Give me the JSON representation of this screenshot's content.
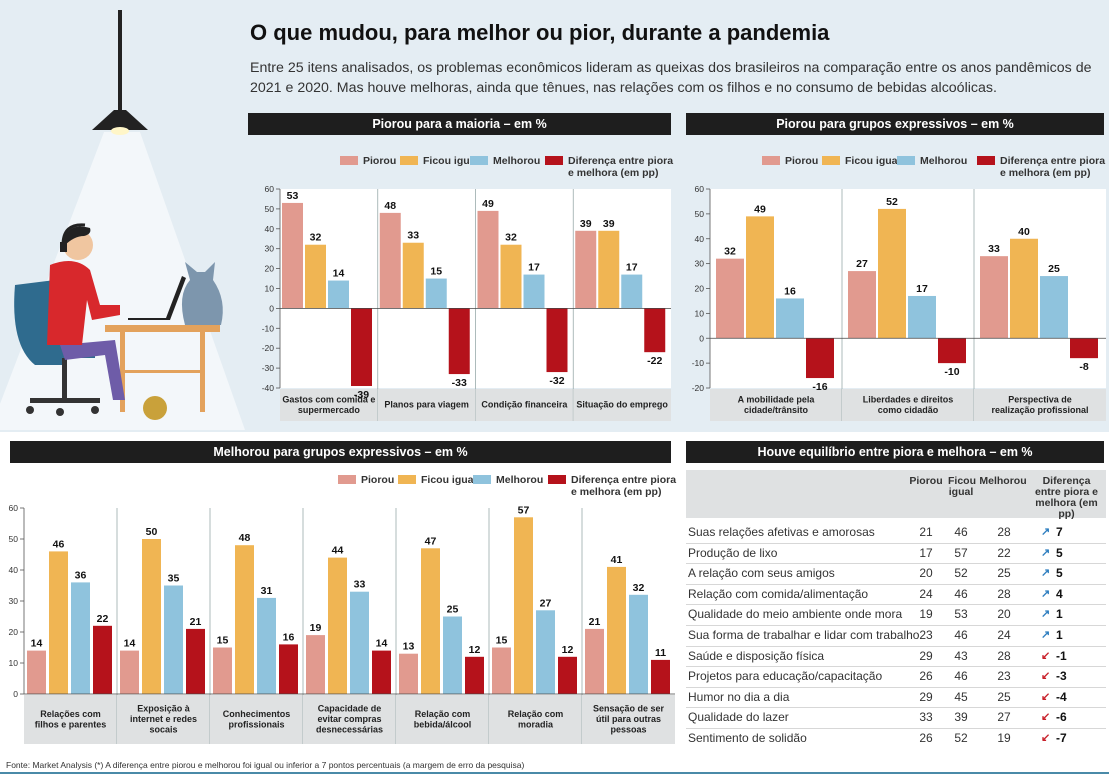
{
  "title": "O que mudou, para melhor ou pior, durante a pandemia",
  "subtitle": "Entre 25 itens analisados, os problemas econômicos lideram as queixas dos brasileiros na comparação entre os anos pandêmicos de 2021 e 2020. Mas houve melhoras, ainda que tênues, nas relações com os filhos e no consumo de bebidas alcoólicas.",
  "legend": {
    "piorou": "Piorou",
    "ficou_igual": "Ficou igual",
    "melhorou": "Melhorou",
    "diferenca": "Diferença entre piora e melhora (em pp)"
  },
  "colors": {
    "piorou": "#e19a8f",
    "ficou_igual": "#f0b553",
    "melhorou": "#8fc3dd",
    "diferenca": "#b5121b",
    "header_bg": "#1e1e1e",
    "band_bg": "#e4edf3",
    "arrow_up": "#2f7fc0",
    "arrow_down": "#c8202a"
  },
  "chart_data": [
    {
      "type": "bar",
      "title": "Piorou para a maioria – em %",
      "series_names": [
        "Piorou",
        "Ficou igual",
        "Melhorou",
        "Diferença entre piora e melhora (em pp)"
      ],
      "ylim": [
        -40,
        60
      ],
      "yticks": [
        60,
        50,
        40,
        30,
        20,
        10,
        0,
        -10,
        -20,
        -30,
        -40
      ],
      "categories": [
        {
          "label": "Gastos com comida e supermercado",
          "values": [
            53,
            32,
            14,
            -39
          ]
        },
        {
          "label": "Planos para viagem",
          "values": [
            48,
            33,
            15,
            -33
          ]
        },
        {
          "label": "Condição financeira",
          "values": [
            49,
            32,
            17,
            -32
          ]
        },
        {
          "label": "Situação do emprego",
          "values": [
            39,
            39,
            17,
            -22
          ]
        }
      ]
    },
    {
      "type": "bar",
      "title": "Piorou para grupos expressivos – em %",
      "series_names": [
        "Piorou",
        "Ficou igual",
        "Melhorou",
        "Diferença entre piora e melhora (em pp)"
      ],
      "ylim": [
        -20,
        60
      ],
      "yticks": [
        60,
        50,
        40,
        30,
        20,
        10,
        0,
        -10,
        -20
      ],
      "categories": [
        {
          "label": "A mobilidade pela cidade/trânsito",
          "values": [
            32,
            49,
            16,
            -16
          ]
        },
        {
          "label": "Liberdades e direitos como cidadão",
          "values": [
            27,
            52,
            17,
            -10
          ]
        },
        {
          "label": "Perspectiva de realização profissional",
          "values": [
            33,
            40,
            25,
            -8
          ]
        }
      ]
    },
    {
      "type": "bar",
      "title": "Melhorou para grupos expressivos – em %",
      "series_names": [
        "Piorou",
        "Ficou igual",
        "Melhorou",
        "Diferença entre piora e melhora (em pp)"
      ],
      "ylim": [
        0,
        60
      ],
      "yticks": [
        60,
        50,
        40,
        30,
        20,
        10,
        0
      ],
      "categories": [
        {
          "label": "Relações com filhos e parentes",
          "values": [
            14,
            46,
            36,
            22
          ]
        },
        {
          "label": "Exposição à internet e redes socais",
          "values": [
            14,
            50,
            35,
            21
          ]
        },
        {
          "label": "Conhecimentos profissionais",
          "values": [
            15,
            48,
            31,
            16
          ]
        },
        {
          "label": "Capacidade de evitar compras desnecessárias",
          "values": [
            19,
            44,
            33,
            14
          ]
        },
        {
          "label": "Relação com bebida/álcool",
          "values": [
            13,
            47,
            25,
            12
          ]
        },
        {
          "label": "Relação com moradia",
          "values": [
            15,
            57,
            27,
            12
          ]
        },
        {
          "label": "Sensação de ser útil para outras pessoas",
          "values": [
            21,
            41,
            32,
            11
          ]
        }
      ]
    },
    {
      "type": "table",
      "title": "Houve equilíbrio entre piora e melhora – em %",
      "columns": [
        "Piorou",
        "Ficou igual",
        "Melhorou",
        "Diferença entre piora e melhora (em pp)"
      ],
      "rows": [
        {
          "label": "Suas relações afetivas e amorosas",
          "piorou": 21,
          "ficou_igual": 46,
          "melhorou": 28,
          "diferenca": "7",
          "dir": "up"
        },
        {
          "label": "Produção de lixo",
          "piorou": 17,
          "ficou_igual": 57,
          "melhorou": 22,
          "diferenca": "5",
          "dir": "up"
        },
        {
          "label": "A relação com seus amigos",
          "piorou": 20,
          "ficou_igual": 52,
          "melhorou": 25,
          "diferenca": "5",
          "dir": "up"
        },
        {
          "label": "Relação com comida/alimentação",
          "piorou": 24,
          "ficou_igual": 46,
          "melhorou": 28,
          "diferenca": "4",
          "dir": "up"
        },
        {
          "label": "Qualidade do meio ambiente onde mora",
          "piorou": 19,
          "ficou_igual": 53,
          "melhorou": 20,
          "diferenca": "1",
          "dir": "up"
        },
        {
          "label": "Sua forma de trabalhar e lidar com trabalho",
          "piorou": 23,
          "ficou_igual": 46,
          "melhorou": 24,
          "diferenca": "1",
          "dir": "up"
        },
        {
          "label": "Saúde e disposição física",
          "piorou": 29,
          "ficou_igual": 43,
          "melhorou": 28,
          "diferenca": "-1",
          "dir": "down"
        },
        {
          "label": "Projetos para educação/capacitação",
          "piorou": 26,
          "ficou_igual": 46,
          "melhorou": 23,
          "diferenca": "-3",
          "dir": "down"
        },
        {
          "label": "Humor no dia a dia",
          "piorou": 29,
          "ficou_igual": 45,
          "melhorou": 25,
          "diferenca": "-4",
          "dir": "down"
        },
        {
          "label": "Qualidade do lazer",
          "piorou": 33,
          "ficou_igual": 39,
          "melhorou": 27,
          "diferenca": "-6",
          "dir": "down"
        },
        {
          "label": "Sentimento de solidão",
          "piorou": 26,
          "ficou_igual": 52,
          "melhorou": 19,
          "diferenca": "-7",
          "dir": "down"
        }
      ]
    }
  ],
  "footer": "Fonte: Market Analysis (*) A diferença entre piorou e melhorou foi igual ou inferior a 7 pontos percentuais (a margem de erro da pesquisa)"
}
